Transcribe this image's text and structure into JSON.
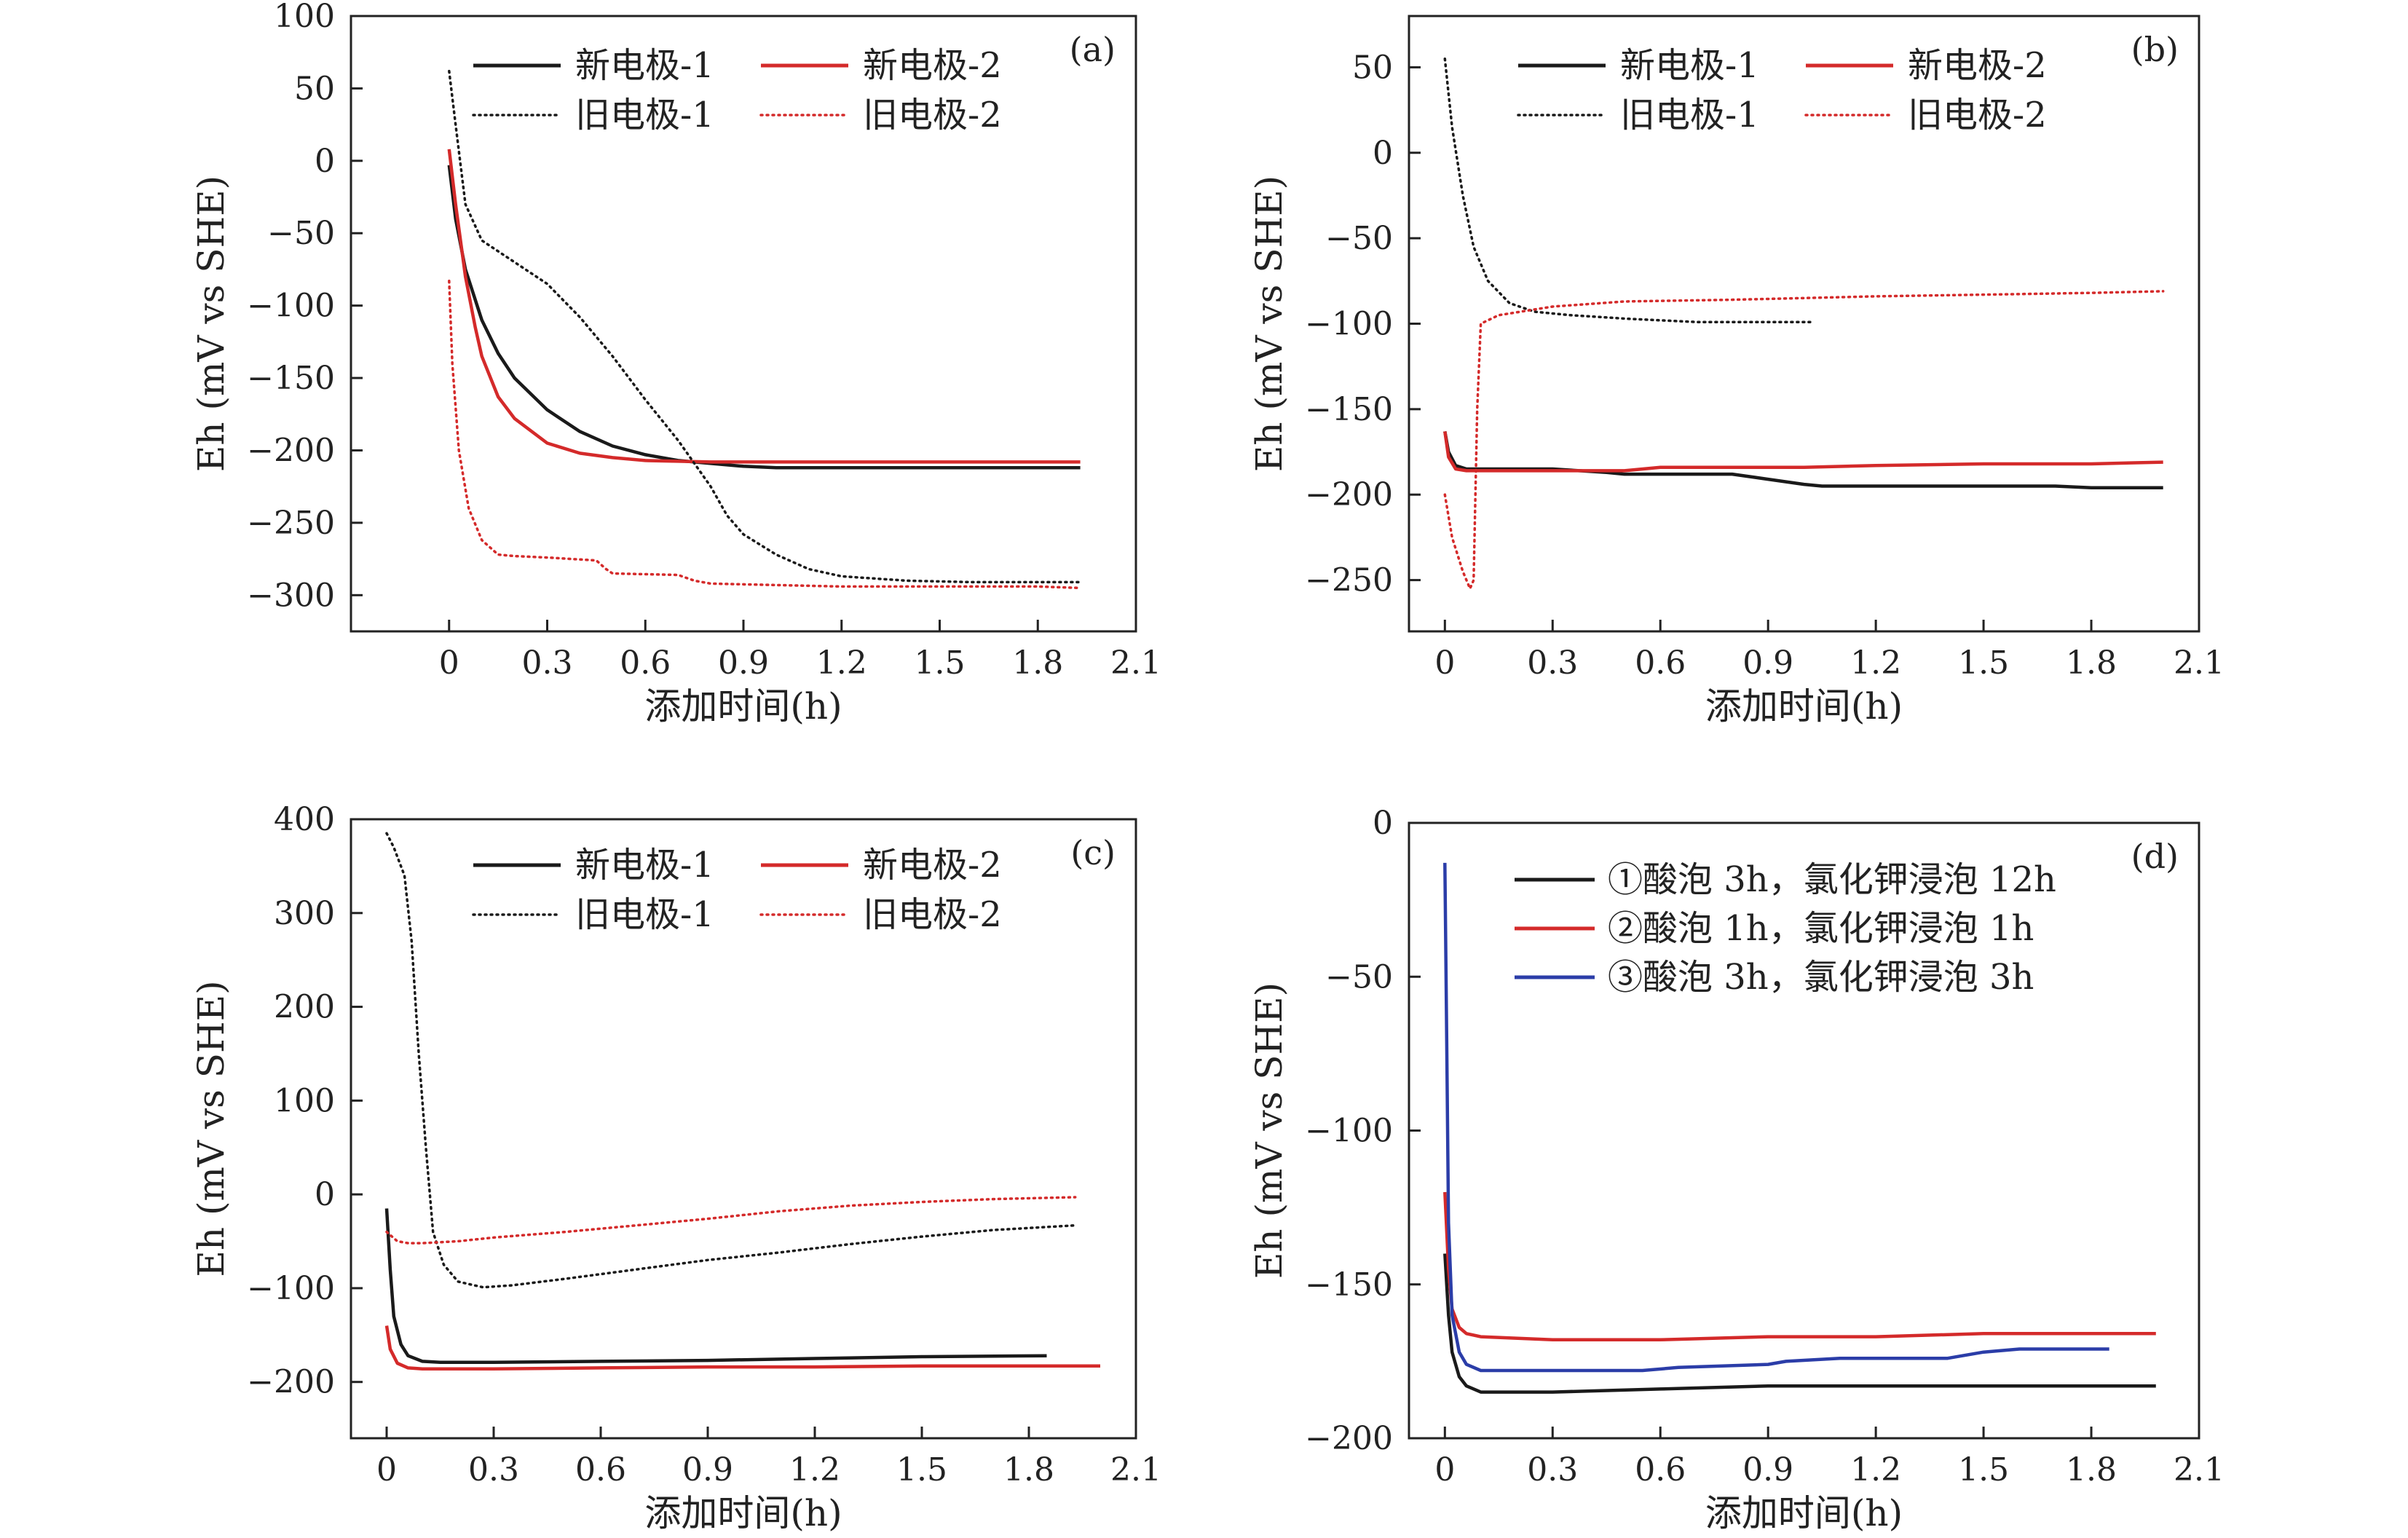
{
  "colors": {
    "black": "#1a1a1a",
    "red": "#d42a2a",
    "blue": "#2b3da8",
    "axis": "#222222"
  },
  "chart_data": [
    {
      "id": "a",
      "type": "line",
      "panel_label": "(a)",
      "xlabel": "添加时间(h)",
      "ylabel": "Eh (mV vs SHE)",
      "xlim": [
        -0.3,
        2.1
      ],
      "ylim": [
        -325,
        100
      ],
      "xticks": [
        0,
        0.3,
        0.6,
        0.9,
        1.2,
        1.5,
        1.8,
        2.1
      ],
      "yticks": [
        100,
        50,
        0,
        -50,
        -100,
        -150,
        -200,
        -250,
        -300
      ],
      "xtick_labels": [
        "0",
        "0.3",
        "0.6",
        "0.9",
        "1.2",
        "1.5",
        "1.8",
        "2.1"
      ],
      "ytick_labels": [
        "100",
        "50",
        "0",
        "−50",
        "−100",
        "−150",
        "−200",
        "−250",
        "−300"
      ],
      "grid": false,
      "legend_position": "top-center",
      "series": [
        {
          "name": "新电极-1",
          "color": "#1a1a1a",
          "style": "solid",
          "x": [
            0,
            0.02,
            0.05,
            0.1,
            0.15,
            0.2,
            0.3,
            0.4,
            0.5,
            0.6,
            0.7,
            0.8,
            0.9,
            1.0,
            1.2,
            1.5,
            1.8,
            1.93
          ],
          "y": [
            -3,
            -40,
            -75,
            -110,
            -133,
            -150,
            -172,
            -187,
            -197,
            -203,
            -207,
            -209,
            -211,
            -212,
            -212,
            -212,
            -212,
            -212
          ]
        },
        {
          "name": "新电极-2",
          "color": "#d42a2a",
          "style": "solid",
          "x": [
            0,
            0.02,
            0.05,
            0.08,
            0.1,
            0.15,
            0.2,
            0.3,
            0.4,
            0.5,
            0.6,
            0.8,
            1.0,
            1.2,
            1.5,
            1.8,
            1.93
          ],
          "y": [
            8,
            -30,
            -80,
            -115,
            -135,
            -163,
            -178,
            -195,
            -202,
            -205,
            -207,
            -208,
            -208,
            -208,
            -208,
            -208,
            -208
          ]
        },
        {
          "name": "旧电极-1",
          "color": "#1a1a1a",
          "style": "dotted",
          "x": [
            0,
            0.02,
            0.05,
            0.1,
            0.2,
            0.3,
            0.4,
            0.5,
            0.6,
            0.7,
            0.8,
            0.85,
            0.9,
            1.0,
            1.1,
            1.2,
            1.4,
            1.6,
            1.8,
            1.93
          ],
          "y": [
            62,
            25,
            -30,
            -55,
            -70,
            -85,
            -108,
            -135,
            -165,
            -193,
            -225,
            -245,
            -258,
            -272,
            -282,
            -287,
            -290,
            -291,
            -291,
            -291
          ]
        },
        {
          "name": "旧电极-2",
          "color": "#d42a2a",
          "style": "dotted",
          "x": [
            0,
            0.01,
            0.03,
            0.06,
            0.1,
            0.15,
            0.2,
            0.3,
            0.45,
            0.48,
            0.5,
            0.7,
            0.75,
            0.8,
            1.0,
            1.2,
            1.5,
            1.8,
            1.93
          ],
          "y": [
            -83,
            -140,
            -200,
            -240,
            -262,
            -272,
            -273,
            -274,
            -276,
            -282,
            -285,
            -286,
            -290,
            -292,
            -293,
            -294,
            -294,
            -294,
            -295
          ]
        }
      ]
    },
    {
      "id": "b",
      "type": "line",
      "panel_label": "(b)",
      "xlabel": "添加时间(h)",
      "ylabel": "Eh (mV vs SHE)",
      "xlim": [
        -0.1,
        2.1
      ],
      "ylim": [
        -280,
        80
      ],
      "xticks": [
        0,
        0.3,
        0.6,
        0.9,
        1.2,
        1.5,
        1.8,
        2.1
      ],
      "yticks": [
        50,
        0,
        -50,
        -100,
        -150,
        -200,
        -250
      ],
      "xtick_labels": [
        "0",
        "0.3",
        "0.6",
        "0.9",
        "1.2",
        "1.5",
        "1.8",
        "2.1"
      ],
      "ytick_labels": [
        "50",
        "0",
        "−50",
        "−100",
        "−150",
        "−200",
        "−250"
      ],
      "grid": false,
      "legend_position": "top-center",
      "series": [
        {
          "name": "新电极-1",
          "color": "#1a1a1a",
          "style": "solid",
          "x": [
            0,
            0.01,
            0.03,
            0.06,
            0.1,
            0.3,
            0.45,
            0.5,
            0.8,
            0.9,
            1.0,
            1.05,
            1.1,
            1.5,
            1.7,
            1.8,
            2.0
          ],
          "y": [
            -163,
            -175,
            -183,
            -185,
            -185,
            -185,
            -187,
            -188,
            -188,
            -191,
            -194,
            -195,
            -195,
            -195,
            -195,
            -196,
            -196
          ]
        },
        {
          "name": "新电极-2",
          "color": "#d42a2a",
          "style": "solid",
          "x": [
            0,
            0.01,
            0.03,
            0.06,
            0.1,
            0.3,
            0.5,
            0.6,
            1.0,
            1.2,
            1.5,
            1.8,
            2.0
          ],
          "y": [
            -163,
            -178,
            -185,
            -186,
            -186,
            -186,
            -186,
            -184,
            -184,
            -183,
            -182,
            -182,
            -181
          ]
        },
        {
          "name": "旧电极-1",
          "color": "#1a1a1a",
          "style": "dotted",
          "x": [
            0,
            0.02,
            0.05,
            0.08,
            0.12,
            0.18,
            0.25,
            0.35,
            0.5,
            0.7,
            0.9,
            1.02
          ],
          "y": [
            55,
            15,
            -25,
            -55,
            -75,
            -88,
            -93,
            -95,
            -97,
            -99,
            -99,
            -99
          ]
        },
        {
          "name": "旧电极-2",
          "color": "#d42a2a",
          "style": "dotted",
          "x": [
            0,
            0.02,
            0.05,
            0.07,
            0.08,
            0.09,
            0.1,
            0.15,
            0.3,
            0.5,
            0.8,
            1.0,
            1.2,
            1.5,
            1.8,
            2.0
          ],
          "y": [
            -200,
            -225,
            -245,
            -255,
            -250,
            -150,
            -100,
            -95,
            -90,
            -87,
            -86,
            -85,
            -84,
            -83,
            -82,
            -81
          ]
        }
      ]
    },
    {
      "id": "c",
      "type": "line",
      "panel_label": "(c)",
      "xlabel": "添加时间(h)",
      "ylabel": "Eh (mV vs SHE)",
      "xlim": [
        -0.1,
        2.1
      ],
      "ylim": [
        -260,
        400
      ],
      "xticks": [
        0,
        0.3,
        0.6,
        0.9,
        1.2,
        1.5,
        1.8,
        2.1
      ],
      "yticks": [
        400,
        300,
        200,
        100,
        0,
        -100,
        -200
      ],
      "xtick_labels": [
        "0",
        "0.3",
        "0.6",
        "0.9",
        "1.2",
        "1.5",
        "1.8",
        "2.1"
      ],
      "ytick_labels": [
        "400",
        "300",
        "200",
        "100",
        "0",
        "−100",
        "−200"
      ],
      "grid": false,
      "legend_position": "top-center",
      "series": [
        {
          "name": "新电极-1",
          "color": "#1a1a1a",
          "style": "solid",
          "x": [
            0,
            0.01,
            0.02,
            0.04,
            0.06,
            0.1,
            0.15,
            0.3,
            0.6,
            0.9,
            1.2,
            1.5,
            1.85
          ],
          "y": [
            -15,
            -80,
            -130,
            -160,
            -172,
            -178,
            -179,
            -179,
            -178,
            -177,
            -175,
            -173,
            -172
          ]
        },
        {
          "name": "新电极-2",
          "color": "#d42a2a",
          "style": "solid",
          "x": [
            0,
            0.01,
            0.03,
            0.06,
            0.1,
            0.3,
            0.6,
            0.9,
            1.2,
            1.5,
            1.8,
            2.0
          ],
          "y": [
            -140,
            -165,
            -180,
            -185,
            -186,
            -186,
            -185,
            -184,
            -184,
            -183,
            -183,
            -183
          ]
        },
        {
          "name": "旧电极-1",
          "color": "#1a1a1a",
          "style": "dotted",
          "x": [
            0,
            0.02,
            0.05,
            0.07,
            0.09,
            0.11,
            0.13,
            0.16,
            0.2,
            0.27,
            0.35,
            0.5,
            0.7,
            0.9,
            1.1,
            1.3,
            1.5,
            1.7,
            1.93
          ],
          "y": [
            385,
            370,
            340,
            270,
            150,
            50,
            -40,
            -75,
            -93,
            -99,
            -97,
            -90,
            -80,
            -70,
            -62,
            -53,
            -45,
            -38,
            -33
          ]
        },
        {
          "name": "旧电极-2",
          "color": "#d42a2a",
          "style": "dotted",
          "x": [
            0,
            0.03,
            0.06,
            0.1,
            0.2,
            0.3,
            0.5,
            0.7,
            0.9,
            1.1,
            1.3,
            1.5,
            1.7,
            1.93
          ],
          "y": [
            -40,
            -50,
            -52,
            -52,
            -50,
            -46,
            -40,
            -33,
            -26,
            -18,
            -12,
            -8,
            -5,
            -3
          ]
        }
      ]
    },
    {
      "id": "d",
      "type": "line",
      "panel_label": "(d)",
      "xlabel": "添加时间(h)",
      "ylabel": "Eh (mV vs SHE)",
      "xlim": [
        -0.1,
        2.1
      ],
      "ylim": [
        -200,
        0
      ],
      "xticks": [
        0,
        0.3,
        0.6,
        0.9,
        1.2,
        1.5,
        1.8,
        2.1
      ],
      "yticks": [
        0,
        -50,
        -100,
        -150,
        -200
      ],
      "xtick_labels": [
        "0",
        "0.3",
        "0.6",
        "0.9",
        "1.2",
        "1.5",
        "1.8",
        "2.1"
      ],
      "ytick_labels": [
        "0",
        "−50",
        "−100",
        "−150",
        "−200"
      ],
      "grid": false,
      "legend_position": "top-center",
      "series": [
        {
          "name": "①酸泡 3h，氯化钾浸泡 12h",
          "color": "#1a1a1a",
          "style": "solid",
          "x": [
            0,
            0.01,
            0.02,
            0.04,
            0.06,
            0.1,
            0.15,
            0.3,
            0.6,
            0.9,
            1.2,
            1.5,
            1.8,
            1.98
          ],
          "y": [
            -140,
            -160,
            -172,
            -180,
            -183,
            -185,
            -185,
            -185,
            -184,
            -183,
            -183,
            -183,
            -183,
            -183
          ]
        },
        {
          "name": "②酸泡 1h，氯化钾浸泡 1h",
          "color": "#d42a2a",
          "style": "solid",
          "x": [
            0,
            0.01,
            0.02,
            0.04,
            0.06,
            0.1,
            0.3,
            0.6,
            0.9,
            1.2,
            1.5,
            1.8,
            1.98
          ],
          "y": [
            -120,
            -145,
            -158,
            -164,
            -166,
            -167,
            -168,
            -168,
            -167,
            -167,
            -166,
            -166,
            -166
          ]
        },
        {
          "name": "③酸泡 3h，氯化钾浸泡 3h",
          "color": "#2b3da8",
          "style": "solid",
          "x": [
            0,
            0.005,
            0.01,
            0.02,
            0.04,
            0.06,
            0.1,
            0.3,
            0.55,
            0.65,
            0.9,
            0.95,
            1.1,
            1.4,
            1.5,
            1.6,
            1.85
          ],
          "y": [
            -13,
            -70,
            -130,
            -160,
            -172,
            -176,
            -178,
            -178,
            -178,
            -177,
            -176,
            -175,
            -174,
            -174,
            -172,
            -171,
            -171
          ]
        }
      ]
    }
  ]
}
